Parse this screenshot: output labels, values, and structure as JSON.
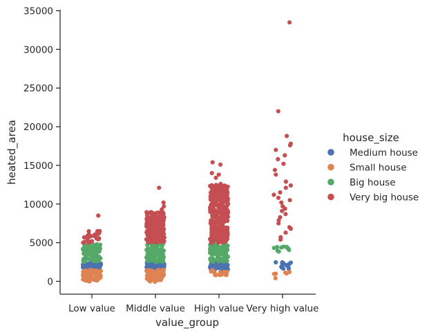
{
  "chart_data": {
    "type": "scatter",
    "subtype": "strip",
    "title": "",
    "xlabel": "value_group",
    "ylabel": "heated_area",
    "categories": [
      "Low value",
      "Middle value",
      "High value",
      "Very high value"
    ],
    "ylim": [
      -1700,
      35000
    ],
    "yticks": [
      0,
      5000,
      10000,
      15000,
      20000,
      25000,
      30000,
      35000
    ],
    "grid": false,
    "legend": {
      "title": "house_size",
      "position": "right"
    },
    "series": [
      {
        "name": "Medium house",
        "color": "#4c72b0",
        "ranges": [
          [
            1500,
            2500
          ],
          [
            1500,
            2500
          ],
          [
            1500,
            2500
          ],
          [
            1500,
            2500
          ]
        ]
      },
      {
        "name": "Small house",
        "color": "#dd8452",
        "ranges": [
          [
            0,
            1500
          ],
          [
            0,
            1500
          ],
          [
            800,
            1500
          ],
          [
            400,
            1500
          ]
        ],
        "outliers": [
          [
            1,
            -50
          ],
          [
            1,
            0
          ]
        ]
      },
      {
        "name": "Big house",
        "color": "#55a868",
        "ranges": [
          [
            2500,
            4800
          ],
          [
            2500,
            5000
          ],
          [
            2500,
            5000
          ],
          [
            3800,
            4500
          ]
        ]
      },
      {
        "name": "Very big house",
        "color": "#c44e52",
        "ranges": [
          [
            5000,
            6500
          ],
          [
            5000,
            9000
          ],
          [
            5000,
            12500
          ],
          [
            5000,
            16000
          ]
        ],
        "outliers": [
          [
            0,
            8500
          ],
          [
            0,
            6500
          ],
          [
            0,
            6300
          ],
          [
            0,
            5200
          ],
          [
            0,
            5100
          ],
          [
            1,
            12100
          ],
          [
            1,
            10200
          ],
          [
            1,
            9700
          ],
          [
            1,
            9300
          ],
          [
            2,
            15400
          ],
          [
            2,
            15100
          ],
          [
            2,
            14000
          ],
          [
            2,
            13800
          ],
          [
            2,
            13400
          ],
          [
            2,
            12600
          ],
          [
            3,
            33500
          ],
          [
            3,
            22000
          ],
          [
            3,
            18800
          ],
          [
            3,
            17800
          ],
          [
            3,
            17600
          ],
          [
            3,
            17000
          ],
          [
            3,
            16300
          ],
          [
            3,
            15800
          ],
          [
            3,
            15200
          ],
          [
            3,
            14400
          ],
          [
            3,
            13800
          ],
          [
            3,
            12900
          ],
          [
            3,
            12100
          ],
          [
            3,
            11500
          ],
          [
            3,
            10800
          ],
          [
            3,
            10200
          ],
          [
            3,
            9700
          ],
          [
            3,
            9100
          ],
          [
            3,
            8700
          ],
          [
            3,
            7900
          ],
          [
            3,
            7500
          ],
          [
            3,
            7000
          ],
          [
            3,
            6800
          ],
          [
            3,
            6300
          ],
          [
            3,
            5400
          ],
          [
            3,
            5700
          ],
          [
            3,
            8300
          ],
          [
            3,
            9400
          ],
          [
            3,
            11200
          ],
          [
            3,
            12400
          ],
          [
            3,
            10500
          ]
        ]
      }
    ]
  }
}
